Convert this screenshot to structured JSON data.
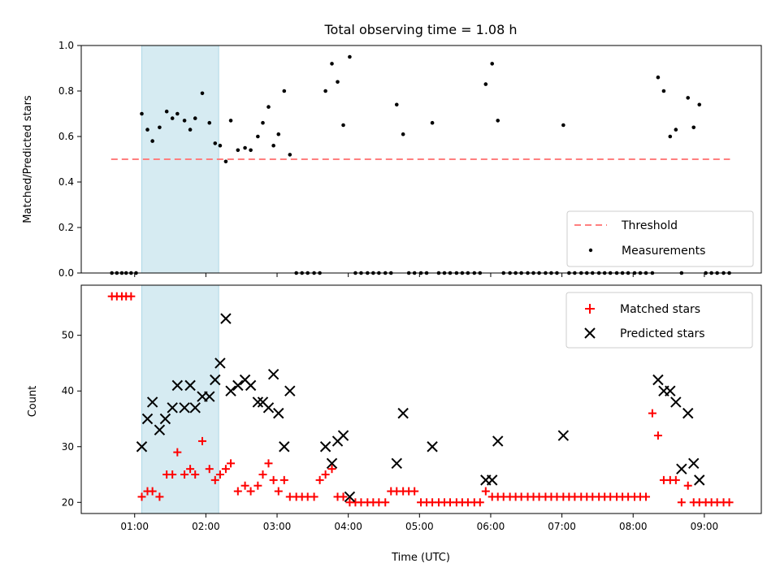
{
  "chart_data": {
    "title": "Total observing time = 1.08 h",
    "xlabel": "Time (UTC)",
    "xticks": [
      "01:00",
      "02:00",
      "03:00",
      "04:00",
      "05:00",
      "06:00",
      "07:00",
      "08:00",
      "09:00"
    ],
    "xlim_hours": [
      0.25,
      9.8
    ],
    "shaded_span_hours": [
      1.1,
      2.18
    ],
    "colors": {
      "shade": "#add8e6",
      "threshold": "#ff7f7f",
      "matched": "#ff0000",
      "predicted": "#000000",
      "measurement": "#000000"
    },
    "panels": [
      {
        "type": "scatter",
        "ylabel": "Matched/Predicted stars",
        "ylim": [
          0,
          1.0
        ],
        "yticks": [
          "0.0",
          "0.2",
          "0.4",
          "0.6",
          "0.8",
          "1.0"
        ],
        "threshold": {
          "name": "Threshold",
          "x": [
            0.67,
            9.36
          ],
          "y": 0.5,
          "style": "dashed"
        },
        "legend": [
          "Threshold",
          "Measurements"
        ],
        "legend_position": "lower-right",
        "series": [
          {
            "name": "Measurements",
            "x": [
              0.68,
              0.75,
              0.82,
              0.88,
              0.95,
              1.02,
              1.1,
              1.18,
              1.25,
              1.35,
              1.45,
              1.53,
              1.6,
              1.7,
              1.78,
              1.85,
              1.95,
              2.05,
              2.13,
              2.2,
              2.28,
              2.35,
              2.45,
              2.55,
              2.63,
              2.73,
              2.8,
              2.88,
              2.95,
              3.02,
              3.1,
              3.18,
              3.27,
              3.35,
              3.43,
              3.52,
              3.6,
              3.68,
              3.77,
              3.85,
              3.93,
              4.02,
              4.1,
              4.18,
              4.27,
              4.35,
              4.43,
              4.52,
              4.6,
              4.68,
              4.77,
              4.85,
              4.93,
              5.02,
              5.1,
              5.18,
              5.27,
              5.35,
              5.43,
              5.52,
              5.6,
              5.68,
              5.77,
              5.85,
              5.93,
              6.02,
              6.1,
              6.18,
              6.27,
              6.35,
              6.43,
              6.52,
              6.6,
              6.68,
              6.77,
              6.85,
              6.93,
              7.02,
              7.1,
              7.18,
              7.27,
              7.35,
              7.43,
              7.52,
              7.6,
              7.68,
              7.77,
              7.85,
              7.93,
              8.02,
              8.1,
              8.18,
              8.27,
              8.35,
              8.43,
              8.52,
              8.6,
              8.68,
              8.77,
              8.85,
              8.93,
              9.02,
              9.1,
              9.18,
              9.27,
              9.35
            ],
            "y": [
              0,
              0,
              0,
              0,
              0,
              0,
              0.7,
              0.63,
              0.58,
              0.64,
              0.71,
              0.68,
              0.7,
              0.67,
              0.63,
              0.68,
              0.79,
              0.66,
              0.57,
              0.56,
              0.49,
              0.67,
              0.54,
              0.55,
              0.54,
              0.6,
              0.66,
              0.73,
              0.56,
              0.61,
              0.8,
              0.52,
              0,
              0,
              0,
              0,
              0,
              0.8,
              0.92,
              0.84,
              0.65,
              0.95,
              0,
              0,
              0,
              0,
              0,
              0,
              0,
              0.74,
              0.61,
              0,
              0,
              0,
              0,
              0.66,
              0,
              0,
              0,
              0,
              0,
              0,
              0,
              0,
              0.83,
              0.92,
              0.67,
              0,
              0,
              0,
              0,
              0,
              0,
              0,
              0,
              0,
              0,
              0.65,
              0,
              0,
              0,
              0,
              0,
              0,
              0,
              0,
              0,
              0,
              0,
              0,
              0,
              0,
              0,
              0.86,
              0.8,
              0.6,
              0.63,
              0,
              0.77,
              0.64,
              0.74,
              0,
              0,
              0,
              0,
              0
            ]
          }
        ]
      },
      {
        "type": "scatter",
        "ylabel": "Count",
        "ylim": [
          18,
          59
        ],
        "yticks": [
          "20",
          "30",
          "40",
          "50"
        ],
        "legend": [
          "Matched stars",
          "Predicted stars"
        ],
        "legend_position": "upper-right",
        "series": [
          {
            "name": "Matched stars",
            "x": [
              0.68,
              0.75,
              0.82,
              0.88,
              0.95,
              1.1,
              1.18,
              1.25,
              1.35,
              1.45,
              1.53,
              1.6,
              1.7,
              1.78,
              1.85,
              1.95,
              2.05,
              2.13,
              2.2,
              2.28,
              2.35,
              2.45,
              2.55,
              2.63,
              2.73,
              2.8,
              2.88,
              2.95,
              3.02,
              3.1,
              3.18,
              3.27,
              3.35,
              3.43,
              3.52,
              3.6,
              3.68,
              3.77,
              3.85,
              3.93,
              4.02,
              4.1,
              4.18,
              4.27,
              4.35,
              4.43,
              4.52,
              4.6,
              4.68,
              4.77,
              4.85,
              4.93,
              5.02,
              5.1,
              5.18,
              5.27,
              5.35,
              5.43,
              5.52,
              5.6,
              5.68,
              5.77,
              5.85,
              5.93,
              6.02,
              6.1,
              6.18,
              6.27,
              6.35,
              6.43,
              6.52,
              6.6,
              6.68,
              6.77,
              6.85,
              6.93,
              7.02,
              7.1,
              7.18,
              7.27,
              7.35,
              7.43,
              7.52,
              7.6,
              7.68,
              7.77,
              7.85,
              7.93,
              8.02,
              8.1,
              8.18,
              8.27,
              8.35,
              8.43,
              8.52,
              8.6,
              8.68,
              8.77,
              8.85,
              8.93,
              9.02,
              9.1,
              9.18,
              9.27,
              9.35
            ],
            "y": [
              57,
              57,
              57,
              57,
              57,
              21,
              22,
              22,
              21,
              25,
              25,
              29,
              25,
              26,
              25,
              31,
              26,
              24,
              25,
              26,
              27,
              22,
              23,
              22,
              23,
              25,
              27,
              24,
              22,
              24,
              21,
              21,
              21,
              21,
              21,
              24,
              25,
              26,
              21,
              21,
              20,
              20,
              20,
              20,
              20,
              20,
              20,
              22,
              22,
              22,
              22,
              22,
              20,
              20,
              20,
              20,
              20,
              20,
              20,
              20,
              20,
              20,
              20,
              22,
              21,
              21,
              21,
              21,
              21,
              21,
              21,
              21,
              21,
              21,
              21,
              21,
              21,
              21,
              21,
              21,
              21,
              21,
              21,
              21,
              21,
              21,
              21,
              21,
              21,
              21,
              21,
              36,
              32,
              24,
              24,
              24,
              20,
              23,
              20,
              20,
              20,
              20,
              20,
              20,
              20
            ]
          },
          {
            "name": "Predicted stars",
            "x": [
              1.1,
              1.18,
              1.25,
              1.35,
              1.43,
              1.53,
              1.6,
              1.7,
              1.78,
              1.85,
              1.95,
              2.05,
              2.13,
              2.2,
              2.28,
              2.35,
              2.45,
              2.55,
              2.63,
              2.73,
              2.8,
              2.88,
              2.95,
              3.02,
              3.1,
              3.18,
              3.68,
              3.77,
              3.85,
              3.93,
              4.02,
              4.68,
              4.77,
              5.18,
              5.93,
              6.02,
              6.1,
              7.02,
              8.35,
              8.43,
              8.52,
              8.6,
              8.68,
              8.77,
              8.85,
              8.93
            ],
            "y": [
              30,
              35,
              38,
              33,
              35,
              37,
              41,
              37,
              41,
              37,
              39,
              39,
              42,
              45,
              53,
              40,
              41,
              42,
              41,
              38,
              38,
              37,
              43,
              36,
              30,
              40,
              30,
              27,
              31,
              32,
              21,
              27,
              36,
              30,
              24,
              24,
              31,
              32,
              42,
              40,
              40,
              38,
              26,
              36,
              27,
              24
            ]
          }
        ]
      }
    ]
  }
}
